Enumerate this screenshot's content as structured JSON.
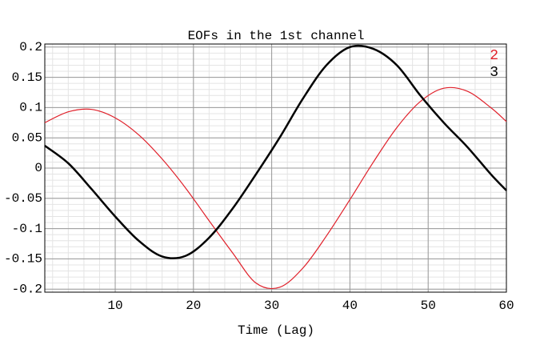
{
  "chart_data": {
    "type": "line",
    "title": "EOFs in the 1st channel",
    "x_label": "Time (Lag)",
    "x": [
      1,
      4,
      7,
      10,
      13,
      16,
      19,
      22,
      25,
      28,
      31,
      34,
      37,
      40,
      43,
      46,
      49,
      52,
      55,
      58,
      60
    ],
    "series": [
      {
        "name": "2",
        "color": "#e0202a",
        "values": [
          0.075,
          0.093,
          0.097,
          0.083,
          0.055,
          0.015,
          -0.033,
          -0.087,
          -0.14,
          -0.19,
          -0.197,
          -0.165,
          -0.112,
          -0.052,
          0.01,
          0.067,
          0.11,
          0.132,
          0.127,
          0.1,
          0.077
        ]
      },
      {
        "name": "3",
        "color": "#000000",
        "values": [
          0.037,
          0.008,
          -0.035,
          -0.08,
          -0.12,
          -0.146,
          -0.145,
          -0.115,
          -0.067,
          -0.01,
          0.05,
          0.115,
          0.17,
          0.2,
          0.197,
          0.17,
          0.12,
          0.075,
          0.035,
          -0.01,
          -0.037
        ]
      }
    ],
    "xlim": [
      1,
      60
    ],
    "ylim": [
      -0.205,
      0.205
    ],
    "xticks": [
      10,
      20,
      30,
      40,
      50,
      60
    ],
    "yticks": [
      0.2,
      0.15,
      0.1,
      0.05,
      0,
      -0.05,
      -0.1,
      -0.15,
      -0.2
    ],
    "grid": true,
    "minor_grid": true,
    "legend": "upper right"
  }
}
